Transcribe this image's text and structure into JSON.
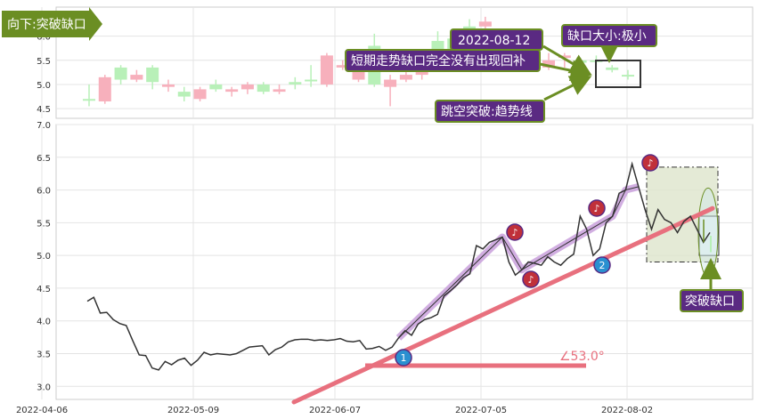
{
  "title_banner": "向下:突破缺口",
  "annotations": {
    "date_label": "2022-08-12",
    "gap_unfilled": "短期走势缺口完全没有出现回补",
    "gap_size": "缺口大小:极小",
    "breakout_trendline": "跳空突破:趋势线",
    "breakout_gap": "突破缺口",
    "angle_label": "∠53.0°",
    "marker_1": "1",
    "marker_2": "2"
  },
  "colors": {
    "up": "#b8f0b8",
    "down": "#f7b0bc",
    "trendline": "#e8707e",
    "pattern": "#c9a0dc",
    "anno_bg": "#5a2a82",
    "anno_border": "#6b8e23",
    "arrow": "#6b8e23",
    "marker_red": "#c0303a",
    "marker_blue": "#2a90d0"
  },
  "chart_data": [
    {
      "type": "candlestick",
      "ylim": [
        4.3,
        6.6
      ],
      "yticks": [
        "4.5",
        "5.0",
        "5.5",
        "6.0"
      ],
      "candles": [
        {
          "o": 4.7,
          "c": 4.7,
          "h": 5.0,
          "l": 4.55
        },
        {
          "o": 5.15,
          "c": 4.65,
          "h": 5.2,
          "l": 4.6
        },
        {
          "o": 5.1,
          "c": 5.35,
          "h": 5.4,
          "l": 5.0
        },
        {
          "o": 5.2,
          "c": 5.1,
          "h": 5.3,
          "l": 5.05
        },
        {
          "o": 5.05,
          "c": 5.35,
          "h": 5.4,
          "l": 4.9
        },
        {
          "o": 5.0,
          "c": 4.95,
          "h": 5.1,
          "l": 4.85
        },
        {
          "o": 4.75,
          "c": 4.85,
          "h": 4.95,
          "l": 4.65
        },
        {
          "o": 4.9,
          "c": 4.7,
          "h": 4.95,
          "l": 4.65
        },
        {
          "o": 4.9,
          "c": 5.0,
          "h": 5.1,
          "l": 4.85
        },
        {
          "o": 4.9,
          "c": 4.85,
          "h": 4.95,
          "l": 4.75
        },
        {
          "o": 5.0,
          "c": 4.9,
          "h": 5.05,
          "l": 4.8
        },
        {
          "o": 4.85,
          "c": 5.0,
          "h": 5.05,
          "l": 4.8
        },
        {
          "o": 4.9,
          "c": 4.85,
          "h": 5.0,
          "l": 4.8
        },
        {
          "o": 5.0,
          "c": 5.05,
          "h": 5.15,
          "l": 4.9
        },
        {
          "o": 5.1,
          "c": 5.1,
          "h": 5.4,
          "l": 4.95
        },
        {
          "o": 5.6,
          "c": 5.0,
          "h": 5.65,
          "l": 4.95
        },
        {
          "o": 5.4,
          "c": 5.35,
          "h": 5.5,
          "l": 5.3
        },
        {
          "o": 5.45,
          "c": 5.1,
          "h": 5.55,
          "l": 5.05
        },
        {
          "o": 5.0,
          "c": 5.8,
          "h": 6.05,
          "l": 4.95
        },
        {
          "o": 5.1,
          "c": 4.95,
          "h": 5.2,
          "l": 4.55
        },
        {
          "o": 5.2,
          "c": 5.1,
          "h": 5.3,
          "l": 5.05
        },
        {
          "o": 5.3,
          "c": 5.2,
          "h": 5.4,
          "l": 5.1
        },
        {
          "o": 5.55,
          "c": 5.9,
          "h": 6.1,
          "l": 5.45
        },
        {
          "o": 5.6,
          "c": 5.95,
          "h": 6.15,
          "l": 5.55
        },
        {
          "o": 6.05,
          "c": 6.2,
          "h": 6.35,
          "l": 5.95
        },
        {
          "o": 6.3,
          "c": 6.2,
          "h": 6.4,
          "l": 6.1
        },
        {
          "o": 5.55,
          "c": 5.5,
          "h": 5.65,
          "l": 5.4
        },
        {
          "o": 5.45,
          "c": 5.45,
          "h": 5.55,
          "l": 5.3
        },
        {
          "o": 5.55,
          "c": 5.5,
          "h": 5.6,
          "l": 5.45
        },
        {
          "o": 5.5,
          "c": 5.35,
          "h": 5.65,
          "l": 5.3
        },
        {
          "o": 5.6,
          "c": 5.55,
          "h": 5.65,
          "l": 5.35
        },
        {
          "o": 5.45,
          "c": 5.5,
          "h": 5.55,
          "l": 5.4
        },
        {
          "o": 5.5,
          "c": 5.5,
          "h": 5.6,
          "l": 5.4
        },
        {
          "o": 5.3,
          "c": 5.35,
          "h": 5.4,
          "l": 5.25
        },
        {
          "o": 5.2,
          "c": 5.2,
          "h": 5.3,
          "l": 5.1
        }
      ]
    },
    {
      "type": "line",
      "ylim": [
        2.8,
        7.0
      ],
      "yticks": [
        "3.0",
        "3.5",
        "4.0",
        "4.5",
        "5.0",
        "5.5",
        "6.0",
        "6.5",
        "7.0"
      ],
      "x_ticks": [
        "2022-04-06",
        "2022-05-09",
        "2022-06-07",
        "2022-07-05",
        "2022-08-02"
      ],
      "series": [
        {
          "values": [
            4.3,
            4.36,
            4.12,
            4.13,
            4.02,
            3.96,
            3.93,
            3.7,
            3.48,
            3.47,
            3.28,
            3.25,
            3.38,
            3.33,
            3.4,
            3.43,
            3.32,
            3.4,
            3.52,
            3.48,
            3.5,
            3.49,
            3.48,
            3.5,
            3.55,
            3.6,
            3.61,
            3.62,
            3.48,
            3.56,
            3.6,
            3.68,
            3.71,
            3.72,
            3.72,
            3.7,
            3.71,
            3.7,
            3.71,
            3.73,
            3.69,
            3.68,
            3.7,
            3.57,
            3.58,
            3.61,
            3.55,
            3.6,
            3.74,
            3.85,
            3.78,
            3.95,
            4.02,
            4.05,
            4.1,
            4.38,
            4.46,
            4.55,
            4.66,
            4.72,
            5.15,
            5.1,
            5.2,
            5.24,
            5.28,
            4.9,
            4.7,
            4.78,
            4.9,
            4.88,
            4.85,
            4.98,
            4.9,
            4.85,
            4.95,
            5.02,
            5.6,
            5.4,
            5.0,
            5.1,
            5.5,
            5.6,
            5.95,
            6.0,
            6.4,
            6.05,
            5.7,
            5.4,
            5.7,
            5.55,
            5.5,
            5.35,
            5.52,
            5.6,
            5.4,
            5.2,
            5.35
          ]
        }
      ]
    }
  ]
}
